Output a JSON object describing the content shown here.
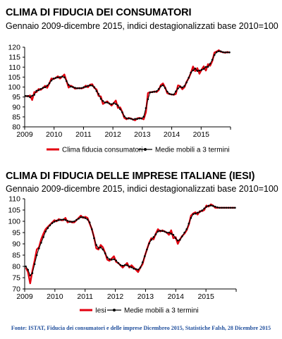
{
  "source": "Fonte: ISTAT, Fiducia dei consumatori e delle imprese Dicembreo 2015, Statistiche Falsh, 28 Dicembre 2015",
  "colors": {
    "raw": "#e3000f",
    "avg": "#000000",
    "axis": "#000000"
  },
  "chart_data": [
    {
      "type": "line",
      "title": "CLIMA DI FIDUCIA DEI CONSUMATORI",
      "subtitle": "Gennaio 2009-dicembre 2015, indici destagionalizzati base 2010=100",
      "xlabel": "",
      "ylabel": "",
      "x_ticks": [
        "2009",
        "2010",
        "2011",
        "2012",
        "2013",
        "2014",
        "2015"
      ],
      "y_ticks": [
        80,
        85,
        90,
        95,
        100,
        105,
        110,
        115,
        120
      ],
      "ylim": [
        80,
        120
      ],
      "x_start": "2009-01",
      "x_end": "2015-12",
      "legend_position": "bottom",
      "grid": false,
      "series": [
        {
          "name": "Clima fiducia consumatori",
          "style": "red-line",
          "values": [
            95.5,
            95.3,
            95.8,
            93.5,
            97.5,
            97.4,
            99,
            98.6,
            99.5,
            100.6,
            99.6,
            101.8,
            104.3,
            104,
            104.6,
            105.4,
            104.3,
            105.2,
            106.3,
            103.1,
            99.7,
            100.7,
            100.1,
            99.2,
            99.4,
            99.5,
            99.3,
            99.6,
            100.7,
            99.9,
            101.2,
            101.4,
            99.5,
            98.8,
            95.5,
            95.3,
            91.5,
            92.2,
            92.8,
            91.7,
            90.7,
            91.9,
            93.2,
            89.5,
            89.8,
            87.5,
            84.5,
            83.8,
            84.5,
            84.2,
            83.7,
            83.3,
            84.3,
            84.5,
            84.3,
            83.8,
            87.3,
            97,
            97.4,
            97.4,
            97.8,
            97.5,
            98.4,
            101,
            101.8,
            99.8,
            96.9,
            96.5,
            96.3,
            96.1,
            96.5,
            100.8,
            100.5,
            98.9,
            99.9,
            102.6,
            104.5,
            107,
            110.3,
            108,
            109.5,
            106.7,
            108.7,
            110.4,
            108.3,
            111.5,
            110.7,
            113,
            117.3,
            117.8,
            118.5,
            117.7,
            117.5,
            117.2,
            117.6,
            117.3
          ]
        },
        {
          "name": "Medie mobili a 3 termini",
          "style": "black-line-markers",
          "values": [
            95.5,
            95.5,
            94.9,
            95.6,
            96.1,
            98.1,
            98.4,
            99,
            99.6,
            99.9,
            100.7,
            101.9,
            103.3,
            104.3,
            104.6,
            104.8,
            105,
            105.3,
            104.9,
            103,
            101.1,
            100.2,
            100,
            99.6,
            99.4,
            99.4,
            99.5,
            99.9,
            100.1,
            100.6,
            100.8,
            100.7,
            99.9,
            98,
            96.5,
            94.1,
            93,
            92.2,
            92.2,
            91.7,
            91.4,
            91.9,
            91.5,
            90.8,
            88.9,
            87.3,
            85.3,
            84.3,
            84.2,
            84.1,
            83.7,
            84,
            84,
            84.2,
            84.2,
            85.1,
            89.4,
            93.9,
            97.3,
            97.5,
            97.6,
            97.9,
            99,
            100.4,
            100.9,
            99.5,
            97.7,
            96.6,
            96.3,
            96.3,
            97.8,
            99.3,
            100.1,
            99.8,
            100.5,
            102.3,
            104.7,
            107.3,
            108.4,
            109.3,
            108.1,
            108.3,
            108.6,
            109.1,
            110.1,
            110.2,
            111.7,
            113.7,
            116.1,
            117.5,
            118,
            117.9,
            117.5,
            117.4,
            117.4,
            117.4
          ]
        }
      ]
    },
    {
      "type": "line",
      "title": "CLIMA DI FIDUCIA DELLE IMPRESE ITALIANE (IESI)",
      "subtitle": "Gennaio 2009-dicembre 2015, indici destagionalizzati base 2010=100",
      "xlabel": "",
      "ylabel": "",
      "x_ticks": [
        "2009",
        "2010",
        "2011",
        "2012",
        "2013",
        "2014",
        "2015"
      ],
      "y_ticks": [
        70,
        75,
        80,
        85,
        90,
        95,
        100,
        105,
        110
      ],
      "ylim": [
        70,
        110
      ],
      "x_start": "2009-01",
      "x_end": "2015-12",
      "legend_position": "bottom",
      "grid": false,
      "series": [
        {
          "name": "Iesi",
          "style": "red-line",
          "values": [
            79.5,
            77.5,
            72.5,
            78,
            82.5,
            87.5,
            88.5,
            92,
            94.5,
            96.5,
            97.5,
            98.5,
            99.5,
            100.5,
            100,
            101,
            100.5,
            100.5,
            101.5,
            99.5,
            100,
            99.5,
            99.5,
            100.5,
            101.5,
            102.5,
            101.5,
            102,
            101.5,
            99,
            96.5,
            93,
            88,
            87.5,
            89.5,
            88.5,
            86,
            83,
            82.5,
            83.5,
            84.5,
            82,
            81.5,
            80.5,
            79.5,
            80.5,
            81.5,
            79.5,
            80.5,
            79.5,
            78.5,
            77.5,
            79.5,
            81,
            84.5,
            87.5,
            90.5,
            92.5,
            92,
            94.5,
            96.5,
            95.5,
            96,
            95.5,
            95,
            94,
            96,
            92.5,
            93,
            90,
            92,
            93.5,
            94.5,
            96,
            98.5,
            102.5,
            103.5,
            104,
            103,
            104.5,
            104.5,
            105,
            107,
            106.5,
            107.5,
            107,
            106,
            106,
            106,
            106,
            106,
            106,
            106,
            106,
            106,
            106
          ]
        },
        {
          "name": "Medie mobili a 3 termini",
          "style": "black-line-markers",
          "values": [
            80,
            78.5,
            76,
            77,
            81,
            85,
            88,
            90.5,
            93,
            95.5,
            97,
            98.2,
            99.2,
            99.8,
            100.3,
            100.5,
            100.7,
            100.8,
            100.6,
            100.2,
            99.8,
            99.8,
            100,
            100.6,
            101.2,
            101.8,
            101.8,
            101.4,
            100.8,
            99.5,
            96.5,
            92.5,
            89.5,
            88.2,
            88.4,
            87.5,
            85.8,
            84,
            83.2,
            83,
            83.2,
            82.6,
            81.5,
            80.6,
            80.3,
            80.6,
            80.5,
            80,
            79.6,
            79,
            78.8,
            78.6,
            79.5,
            81.8,
            84.5,
            87.5,
            90.2,
            91.8,
            93,
            94.2,
            95.5,
            95.8,
            95.7,
            95.5,
            95,
            95,
            94.5,
            94,
            92.5,
            91.5,
            91.8,
            93.3,
            95,
            96.5,
            99,
            101.5,
            103.2,
            103.4,
            103.8,
            104.2,
            104.8,
            105.7,
            106.4,
            106.9,
            107,
            106.8,
            106.5,
            106.2,
            106,
            106,
            106,
            106,
            106,
            106,
            106,
            106
          ]
        }
      ]
    }
  ]
}
